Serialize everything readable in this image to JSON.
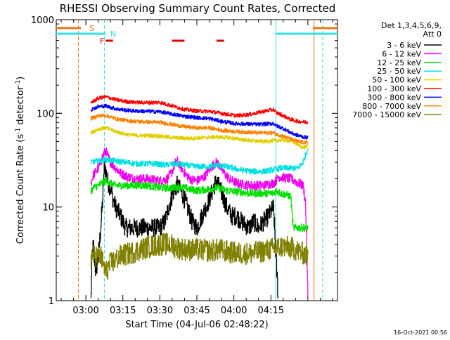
{
  "chart_data": {
    "type": "line",
    "title": "RHESSI Observing Summary Count Rates, Corrected",
    "xlabel": "Start Time (04-Jul-06 02:48:22)",
    "ylabel_parts": [
      "Corrected Count Rate (s",
      "-1",
      " detector",
      "-1",
      ")"
    ],
    "y_scale": "log",
    "ylim": [
      1,
      1000
    ],
    "y_ticks": [
      1,
      10,
      100,
      1000
    ],
    "y_tick_labels": [
      "1",
      "10",
      "100",
      "1000"
    ],
    "xlim_minutes": [
      -12,
      102
    ],
    "x_ticks": [
      {
        "minute": 0,
        "label": "03:00"
      },
      {
        "minute": 15,
        "label": "03:15"
      },
      {
        "minute": 30,
        "label": "03:30"
      },
      {
        "minute": 45,
        "label": "03:45"
      },
      {
        "minute": 60,
        "label": "04:00"
      },
      {
        "minute": 75,
        "label": "04:15"
      }
    ],
    "legend_header": [
      "Det 1,3,4,5,6,9,",
      "Att 0"
    ],
    "footer_date": "16-Oct-2021 00:56",
    "flag_labels": {
      "saa": "S",
      "night": "N",
      "flare": "F"
    },
    "flags": {
      "saa": {
        "color": "#e07818",
        "segments": [
          [
            -12,
            -2
          ],
          [
            92,
            102
          ]
        ]
      },
      "night": {
        "color": "#30e0e8",
        "segments": [
          [
            -12,
            8
          ],
          [
            77,
            102
          ]
        ]
      },
      "flare": {
        "color": "#e00000",
        "segments": [
          [
            8,
            11
          ],
          [
            35,
            40
          ],
          [
            53,
            56
          ]
        ]
      }
    },
    "vlines": [
      {
        "minute": -3,
        "color": "#e07818"
      },
      {
        "minute": 7.5,
        "color": "#30e0e8"
      },
      {
        "minute": 77,
        "color": "#30e0e8"
      },
      {
        "minute": 92.5,
        "color": "#e07818"
      },
      {
        "minute": 96,
        "color": "#30e0e8"
      }
    ],
    "series": [
      {
        "name": "3 - 6 keV",
        "color": "#000000",
        "noise": 0.1,
        "points": [
          [
            2,
            1
          ],
          [
            2.5,
            3
          ],
          [
            3,
            4
          ],
          [
            4,
            2
          ],
          [
            5,
            3
          ],
          [
            6,
            6
          ],
          [
            7,
            15
          ],
          [
            7.5,
            30
          ],
          [
            8,
            24
          ],
          [
            9,
            18
          ],
          [
            10,
            16
          ],
          [
            11,
            12
          ],
          [
            12,
            10
          ],
          [
            14,
            8
          ],
          [
            16,
            6
          ],
          [
            18,
            6
          ],
          [
            22,
            6
          ],
          [
            26,
            6
          ],
          [
            30,
            6
          ],
          [
            32,
            7
          ],
          [
            34,
            11
          ],
          [
            36,
            16
          ],
          [
            37,
            17
          ],
          [
            39,
            14
          ],
          [
            41,
            10
          ],
          [
            43,
            7
          ],
          [
            45,
            6
          ],
          [
            47,
            8
          ],
          [
            50,
            12
          ],
          [
            52,
            17
          ],
          [
            53,
            19
          ],
          [
            55,
            14
          ],
          [
            57,
            10
          ],
          [
            59,
            8
          ],
          [
            61,
            8
          ],
          [
            63,
            7
          ],
          [
            66,
            6
          ],
          [
            68,
            7
          ],
          [
            70,
            6
          ],
          [
            72,
            7
          ],
          [
            74,
            8
          ],
          [
            76,
            10
          ],
          [
            77,
            3
          ],
          [
            78,
            1
          ]
        ]
      },
      {
        "name": "6 - 12 keV",
        "color": "#f000f0",
        "noise": 0.05,
        "points": [
          [
            2,
            18
          ],
          [
            3,
            22
          ],
          [
            5,
            26
          ],
          [
            6,
            30
          ],
          [
            7,
            36
          ],
          [
            8,
            40
          ],
          [
            9,
            34
          ],
          [
            10,
            30
          ],
          [
            12,
            26
          ],
          [
            14,
            23
          ],
          [
            17,
            21
          ],
          [
            20,
            20
          ],
          [
            25,
            20
          ],
          [
            30,
            19
          ],
          [
            33,
            20
          ],
          [
            35,
            24
          ],
          [
            36,
            29
          ],
          [
            37,
            31
          ],
          [
            38,
            28
          ],
          [
            40,
            23
          ],
          [
            42,
            20
          ],
          [
            45,
            19
          ],
          [
            48,
            21
          ],
          [
            50,
            25
          ],
          [
            52,
            29
          ],
          [
            53,
            30
          ],
          [
            54,
            28
          ],
          [
            56,
            23
          ],
          [
            58,
            20
          ],
          [
            61,
            18
          ],
          [
            66,
            17
          ],
          [
            72,
            17
          ],
          [
            76,
            18
          ],
          [
            77,
            19
          ],
          [
            78,
            21
          ],
          [
            83,
            20
          ],
          [
            86,
            18
          ],
          [
            88,
            17
          ],
          [
            89,
            11
          ],
          [
            90,
            1
          ]
        ]
      },
      {
        "name": "12 - 25 keV",
        "color": "#00e000",
        "noise": 0.04,
        "points": [
          [
            2,
            15
          ],
          [
            3,
            16
          ],
          [
            5,
            17
          ],
          [
            8,
            19
          ],
          [
            10,
            18
          ],
          [
            12,
            17
          ],
          [
            16,
            17
          ],
          [
            20,
            17
          ],
          [
            25,
            17
          ],
          [
            30,
            16
          ],
          [
            35,
            16
          ],
          [
            38,
            16.5
          ],
          [
            42,
            15.5
          ],
          [
            45,
            15
          ],
          [
            50,
            15.5
          ],
          [
            53,
            16
          ],
          [
            57,
            15
          ],
          [
            62,
            14.5
          ],
          [
            67,
            14
          ],
          [
            72,
            14
          ],
          [
            76,
            14
          ],
          [
            77,
            15
          ],
          [
            79,
            14
          ],
          [
            81,
            13.5
          ],
          [
            83,
            13
          ],
          [
            84,
            6
          ],
          [
            90,
            6
          ]
        ]
      },
      {
        "name": "25 - 50 keV",
        "color": "#00e0e0",
        "noise": 0.03,
        "points": [
          [
            2,
            30
          ],
          [
            5,
            31
          ],
          [
            8,
            32
          ],
          [
            12,
            31
          ],
          [
            16,
            30
          ],
          [
            20,
            29
          ],
          [
            25,
            29
          ],
          [
            28,
            29
          ],
          [
            32,
            28
          ],
          [
            36,
            29
          ],
          [
            40,
            28
          ],
          [
            45,
            27
          ],
          [
            50,
            27
          ],
          [
            53,
            28
          ],
          [
            57,
            27
          ],
          [
            62,
            25
          ],
          [
            67,
            24
          ],
          [
            72,
            24
          ],
          [
            76,
            25
          ],
          [
            79,
            26
          ],
          [
            83,
            26
          ],
          [
            86,
            26
          ],
          [
            88,
            30
          ],
          [
            89,
            36
          ],
          [
            90,
            43
          ]
        ]
      },
      {
        "name": "50 - 100 keV",
        "color": "#e0d000",
        "noise": 0.02,
        "points": [
          [
            2,
            62
          ],
          [
            5,
            68
          ],
          [
            8,
            70
          ],
          [
            12,
            64
          ],
          [
            16,
            60
          ],
          [
            20,
            58
          ],
          [
            25,
            58
          ],
          [
            30,
            57
          ],
          [
            36,
            55
          ],
          [
            42,
            54
          ],
          [
            48,
            55
          ],
          [
            53,
            56
          ],
          [
            58,
            55
          ],
          [
            62,
            53
          ],
          [
            67,
            51
          ],
          [
            72,
            50
          ],
          [
            76,
            51
          ],
          [
            80,
            52
          ],
          [
            84,
            50
          ],
          [
            86,
            46
          ],
          [
            88,
            43
          ],
          [
            90,
            45
          ]
        ]
      },
      {
        "name": "100 - 300 keV",
        "color": "#ff0000",
        "noise": 0.02,
        "points": [
          [
            2,
            130
          ],
          [
            5,
            145
          ],
          [
            8,
            150
          ],
          [
            12,
            140
          ],
          [
            16,
            134
          ],
          [
            20,
            131
          ],
          [
            25,
            130
          ],
          [
            30,
            131
          ],
          [
            35,
            120
          ],
          [
            40,
            110
          ],
          [
            45,
            106
          ],
          [
            50,
            105
          ],
          [
            55,
            100
          ],
          [
            60,
            95
          ],
          [
            63,
            95
          ],
          [
            67,
            98
          ],
          [
            72,
            105
          ],
          [
            76,
            110
          ],
          [
            77,
            102
          ],
          [
            79,
            97
          ],
          [
            83,
            86
          ],
          [
            86,
            82
          ],
          [
            88,
            81
          ],
          [
            90,
            80
          ]
        ]
      },
      {
        "name": "300 - 800 keV",
        "color": "#0000ff",
        "noise": 0.02,
        "points": [
          [
            2,
            110
          ],
          [
            5,
            118
          ],
          [
            8,
            120
          ],
          [
            12,
            112
          ],
          [
            16,
            108
          ],
          [
            20,
            106
          ],
          [
            25,
            105
          ],
          [
            30,
            104
          ],
          [
            35,
            98
          ],
          [
            40,
            93
          ],
          [
            45,
            90
          ],
          [
            50,
            88
          ],
          [
            55,
            82
          ],
          [
            60,
            78
          ],
          [
            65,
            77
          ],
          [
            70,
            76
          ],
          [
            76,
            78
          ],
          [
            77,
            74
          ],
          [
            80,
            69
          ],
          [
            83,
            62
          ],
          [
            86,
            58
          ],
          [
            88,
            56
          ],
          [
            90,
            55
          ]
        ]
      },
      {
        "name": "800 - 7000 keV",
        "color": "#ff8000",
        "noise": 0.02,
        "points": [
          [
            2,
            88
          ],
          [
            5,
            94
          ],
          [
            8,
            95
          ],
          [
            12,
            88
          ],
          [
            16,
            84
          ],
          [
            20,
            82
          ],
          [
            25,
            81
          ],
          [
            30,
            80
          ],
          [
            35,
            76
          ],
          [
            40,
            72
          ],
          [
            45,
            70
          ],
          [
            50,
            70
          ],
          [
            55,
            66
          ],
          [
            60,
            64
          ],
          [
            65,
            63
          ],
          [
            70,
            62
          ],
          [
            76,
            62
          ],
          [
            77,
            60
          ],
          [
            80,
            57
          ],
          [
            83,
            53
          ],
          [
            86,
            50
          ],
          [
            88,
            49
          ],
          [
            90,
            48
          ]
        ]
      },
      {
        "name": "7000 - 15000 keV",
        "color": "#808000",
        "noise": 0.12,
        "points": [
          [
            2,
            3
          ],
          [
            6,
            3
          ],
          [
            8,
            2
          ],
          [
            10,
            2.5
          ],
          [
            14,
            3
          ],
          [
            18,
            3.2
          ],
          [
            22,
            3.5
          ],
          [
            26,
            3.8
          ],
          [
            30,
            4
          ],
          [
            34,
            4
          ],
          [
            38,
            3.6
          ],
          [
            42,
            3.5
          ],
          [
            46,
            3.5
          ],
          [
            50,
            3.4
          ],
          [
            54,
            3.5
          ],
          [
            58,
            3.3
          ],
          [
            62,
            3.2
          ],
          [
            66,
            3.2
          ],
          [
            70,
            3.3
          ],
          [
            74,
            3.5
          ],
          [
            76,
            3.6
          ],
          [
            80,
            3.8
          ],
          [
            84,
            3.6
          ],
          [
            88,
            3.2
          ],
          [
            90,
            3
          ]
        ]
      }
    ]
  }
}
